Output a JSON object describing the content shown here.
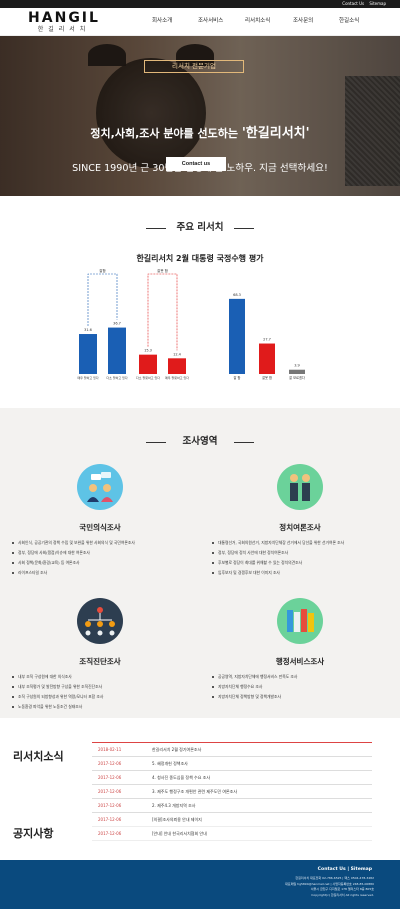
{
  "top_links": {
    "contact": "Contact Us",
    "sitemap": "Sitemap"
  },
  "logo": {
    "brand": "HANGIL",
    "sub": "한길리서치"
  },
  "nav": [
    "회사소개",
    "조사서비스",
    "리서치소식",
    "조사문의",
    "한길소식"
  ],
  "hero": {
    "badge": "리서치 전문기업",
    "title_prefix": "정치,사회,조사 분야를 선도하는",
    "title_brand": "'한길리서치'",
    "subtitle": "SINCE 1990년 근 30년간 진행해 온 노하우. 지금 선택하세요!",
    "button": "Contact us"
  },
  "research": {
    "section_title": "주요 리서치",
    "chart_title": "한길리서치 2월 대통령 국정수행 평가"
  },
  "chart_data": {
    "type": "bar",
    "title": "한길리서치 2월 대통령 국정수행 평가",
    "groups": [
      {
        "label": "잘함",
        "categories": [
          "매우 잘하고 있다",
          "다소 잘하고 있다"
        ],
        "values": [
          31.6,
          36.7
        ],
        "color": "#1a5fb4"
      },
      {
        "label": "잘못 함",
        "categories": [
          "다소 잘못하고 있다",
          "매우 잘못하고 있다"
        ],
        "values": [
          15.3,
          12.4
        ],
        "color": "#e01b1b"
      }
    ],
    "summary": {
      "categories": [
        "잘 함",
        "잘못 함",
        "잘 모르겠다"
      ],
      "values": [
        68.3,
        27.7,
        3.9
      ],
      "colors": [
        "#1a5fb4",
        "#e01b1b",
        "#777777"
      ]
    }
  },
  "areas": {
    "section_title": "조사영역",
    "items": [
      {
        "title": "국민의식조사",
        "icon": "people-chat-icon",
        "bullets": [
          "사회인식, 공공기관의 정책 수립 및 보완을 위한 사회의식 및 국민여론조사",
          "정부, 정당에 사회(쟁점)이슈에 대한 여론조사",
          "사회 정책(문화/환경/교육) 등 여론조사",
          "라이프스타일 조사"
        ]
      },
      {
        "title": "정치여론조사",
        "icon": "politicians-icon",
        "bullets": [
          "대통령선거, 국회의원선거, 지방자치단체장 선거에서 당선을 위한 선거여론 조사",
          "정부, 정당에 정치 사안에 대한 정치여론조사",
          "후보별로 정당이 최대를 위해할 수 있는 정치의견조사",
          "입후보자 및 경쟁후보 대한 이미지 조사"
        ]
      },
      {
        "title": "조직진단조사",
        "icon": "org-chart-icon",
        "bullets": [
          "내부 조직 구성원에 대한 의식조사",
          "내부 조직평가 및 발전방향 구상을 위한 조직진단조사",
          "조직 구성원의 되방향성과 위한 역량/모니터 포함 조사",
          "노동환경 파악을 위한 노동조건 실태조사"
        ]
      },
      {
        "title": "행정서비스조사",
        "icon": "books-icon",
        "bullets": [
          "공공영역, 지방자치단체에 행정서비스 만족도 조사",
          "지방자치단체 행정수요 조사",
          "지방자치단체 정책방향 및 정책개발조사"
        ]
      }
    ]
  },
  "news": {
    "news_title": "리서치소식",
    "notice_title": "공지사항",
    "rows": [
      {
        "date": "2018-02-11",
        "text": "한길리서치 2월 정기여론조사"
      },
      {
        "date": "2017-12-06",
        "text": "5. 혜정개헌 정책조사"
      },
      {
        "date": "2017-12-06",
        "text": "4. 청사진 종도심을 정책 수요 조사"
      },
      {
        "date": "2017-12-06",
        "text": "3. 제주도 행정구조 개편안 관련 제주도민 여론조사"
      },
      {
        "date": "2017-12-06",
        "text": "2. 제주4.3 개방지역 조사"
      },
      {
        "date": "2017-12-06",
        "text": "[의결]조사의뢰용 안내 제이지"
      },
      {
        "date": "2017-12-06",
        "text": "[안내] 안내 한국리서치협회 안내"
      }
    ]
  },
  "footer": {
    "links": "Contact Us  |  Sitemap",
    "line1": "한길리서치 대표전화 02-786-6525 | 팩스 0504-478-3482",
    "line2": "대표메일 hg5890@hanmail.net | 사업자등록번호 248-85-00880",
    "line3": "서울시 금천구 디지털로 178 엘리스타 8층 805호",
    "line4": "Copyright(c) 한길리서치 All rights reserved."
  }
}
